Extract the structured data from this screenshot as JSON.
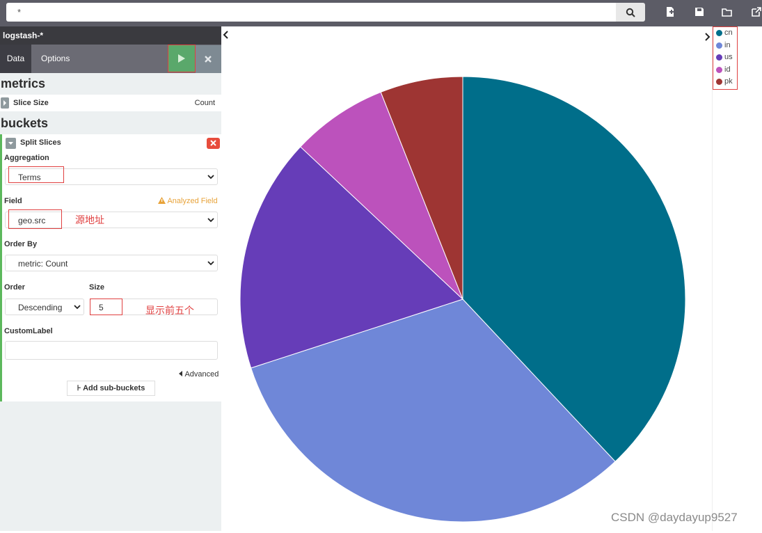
{
  "query": {
    "value": "*"
  },
  "index_pattern": "logstash-*",
  "tabs": {
    "data": "Data",
    "options": "Options"
  },
  "metrics": {
    "title": "metrics",
    "slice_size_label": "Slice Size",
    "slice_size_value": "Count"
  },
  "buckets": {
    "title": "buckets",
    "split_label": "Split Slices",
    "aggregation_label": "Aggregation",
    "aggregation_value": "Terms",
    "field_label": "Field",
    "analyzed_warning": "Analyzed Field",
    "field_value": "geo.src",
    "field_annotation": "源地址",
    "order_by_label": "Order By",
    "order_by_value": "metric: Count",
    "order_label": "Order",
    "order_value": "Descending",
    "size_label": "Size",
    "size_value": "5",
    "size_annotation": "显示前五个",
    "custom_label_label": "CustomLabel",
    "custom_label_value": "",
    "advanced_label": "Advanced",
    "add_sub_buckets_label": "Add sub-buckets"
  },
  "chart_data": {
    "type": "pie",
    "categories": [
      "cn",
      "in",
      "us",
      "id",
      "pk"
    ],
    "values": [
      38,
      32,
      17,
      7,
      6
    ],
    "colors": [
      "#006e8a",
      "#6f87d8",
      "#663db8",
      "#bc52bc",
      "#9e3533"
    ],
    "legend_position": "top-right"
  },
  "watermark": "CSDN @daydayup9527"
}
